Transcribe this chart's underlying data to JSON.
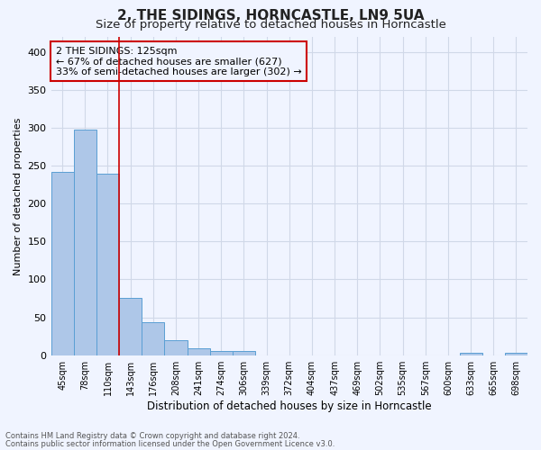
{
  "title": "2, THE SIDINGS, HORNCASTLE, LN9 5UA",
  "subtitle": "Size of property relative to detached houses in Horncastle",
  "xlabel": "Distribution of detached houses by size in Horncastle",
  "ylabel": "Number of detached properties",
  "footnote1": "Contains HM Land Registry data © Crown copyright and database right 2024.",
  "footnote2": "Contains public sector information licensed under the Open Government Licence v3.0.",
  "bar_labels": [
    "45sqm",
    "78sqm",
    "110sqm",
    "143sqm",
    "176sqm",
    "208sqm",
    "241sqm",
    "274sqm",
    "306sqm",
    "339sqm",
    "372sqm",
    "404sqm",
    "437sqm",
    "469sqm",
    "502sqm",
    "535sqm",
    "567sqm",
    "600sqm",
    "633sqm",
    "665sqm",
    "698sqm"
  ],
  "bar_values": [
    242,
    298,
    240,
    76,
    44,
    20,
    9,
    6,
    5,
    0,
    0,
    0,
    0,
    0,
    0,
    0,
    0,
    0,
    3,
    0,
    3
  ],
  "bar_color": "#aec7e8",
  "bar_edge_color": "#5a9fd4",
  "ylim": [
    0,
    420
  ],
  "yticks": [
    0,
    50,
    100,
    150,
    200,
    250,
    300,
    350,
    400
  ],
  "red_line_color": "#cc0000",
  "grid_color": "#d0d8e8",
  "background_color": "#f0f4ff",
  "annotation_text_line1": "2 THE SIDINGS: 125sqm",
  "annotation_text_line2": "← 67% of detached houses are smaller (627)",
  "annotation_text_line3": "33% of semi-detached houses are larger (302) →",
  "title_fontsize": 11,
  "subtitle_fontsize": 9.5,
  "ylabel_fontsize": 8,
  "xlabel_fontsize": 8.5
}
